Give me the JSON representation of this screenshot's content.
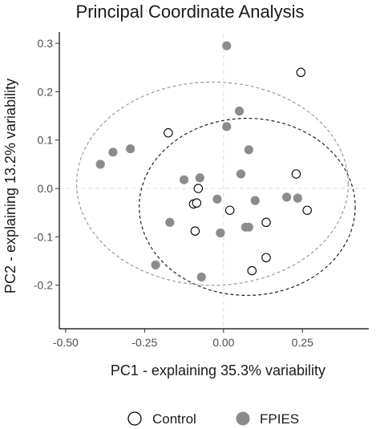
{
  "chart_data": {
    "type": "scatter",
    "title": "Principal Coordinate Analysis",
    "xlabel": "PC1 - explaining 35.3% variability",
    "ylabel": "PC2 - explaining 13.2% variability",
    "xlim": [
      -0.52,
      0.46
    ],
    "ylim": [
      -0.29,
      0.32
    ],
    "xticks": [
      -0.5,
      -0.25,
      0.0,
      0.25
    ],
    "xtick_labels": [
      "-0.50",
      "-0.25",
      "0.00",
      "0.25"
    ],
    "yticks": [
      -0.2,
      -0.1,
      0.0,
      0.1,
      0.2,
      0.3
    ],
    "ytick_labels": [
      "-0.2",
      "-0.1",
      "0.0",
      "0.1",
      "0.2",
      "0.3"
    ],
    "reference_lines": {
      "x": 0,
      "y": 0
    },
    "grid": false,
    "legend_position": "bottom",
    "series": [
      {
        "name": "Control",
        "marker": "open-circle",
        "color": "#000000",
        "ellipse": {
          "style": "dashed",
          "color": "#222222",
          "center": [
            0.075,
            -0.038
          ],
          "radius_x": 0.342,
          "radius_y": 0.183
        },
        "points": [
          [
            -0.175,
            0.115
          ],
          [
            -0.095,
            -0.032
          ],
          [
            -0.085,
            -0.03
          ],
          [
            -0.08,
            0.0
          ],
          [
            -0.09,
            -0.088
          ],
          [
            0.02,
            -0.045
          ],
          [
            0.135,
            -0.07
          ],
          [
            0.135,
            -0.143
          ],
          [
            0.09,
            -0.17
          ],
          [
            0.23,
            0.03
          ],
          [
            0.265,
            -0.045
          ],
          [
            0.245,
            0.24
          ]
        ]
      },
      {
        "name": "FPIES",
        "marker": "filled-circle",
        "color": "#8c8c8c",
        "ellipse": {
          "style": "dashed",
          "color": "#999999",
          "center": [
            -0.035,
            0.01
          ],
          "radius_x": 0.43,
          "radius_y": 0.21
        },
        "points": [
          [
            0.01,
            0.295
          ],
          [
            0.05,
            0.16
          ],
          [
            0.01,
            0.128
          ],
          [
            0.08,
            0.08
          ],
          [
            0.055,
            0.03
          ],
          [
            0.1,
            -0.025
          ],
          [
            0.07,
            -0.08
          ],
          [
            0.2,
            -0.018
          ],
          [
            0.235,
            -0.02
          ],
          [
            -0.39,
            0.05
          ],
          [
            -0.35,
            0.075
          ],
          [
            -0.295,
            0.082
          ],
          [
            -0.125,
            0.018
          ],
          [
            -0.075,
            0.022
          ],
          [
            -0.02,
            -0.022
          ],
          [
            -0.01,
            -0.092
          ],
          [
            -0.17,
            -0.07
          ],
          [
            -0.215,
            -0.158
          ],
          [
            -0.07,
            -0.183
          ],
          [
            0.08,
            -0.08
          ]
        ]
      }
    ]
  },
  "legend": {
    "items": [
      {
        "label": "Control",
        "marker": "open-circle"
      },
      {
        "label": "FPIES",
        "marker": "filled-circle"
      }
    ]
  }
}
